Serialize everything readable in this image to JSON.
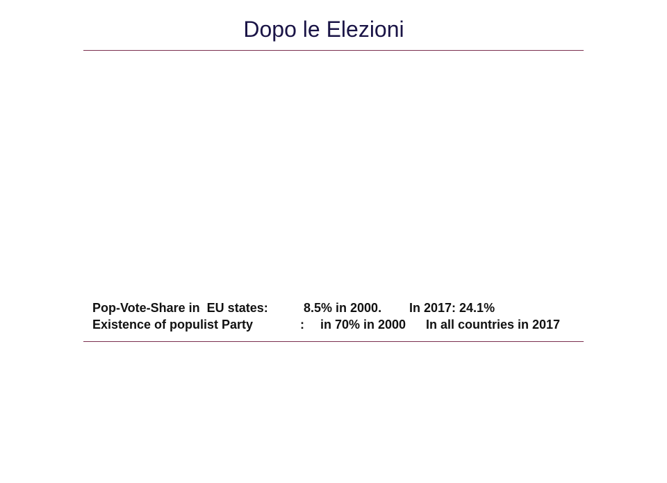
{
  "slide": {
    "title": "Dopo le Elezioni",
    "stats": [
      {
        "label": "Pop-Vote-Share in  EU states:",
        "value_2000": "8.5% in 2000.",
        "value_2017": "In 2017: 24.1%"
      },
      {
        "label": "Existence of populist Party",
        "separator": ":",
        "value_2000": "in 70% in 2000",
        "value_2017": "In all countries in 2017"
      }
    ],
    "colors": {
      "title": "#1a1446",
      "rule": "#7a2e4e",
      "text": "#111111"
    }
  }
}
